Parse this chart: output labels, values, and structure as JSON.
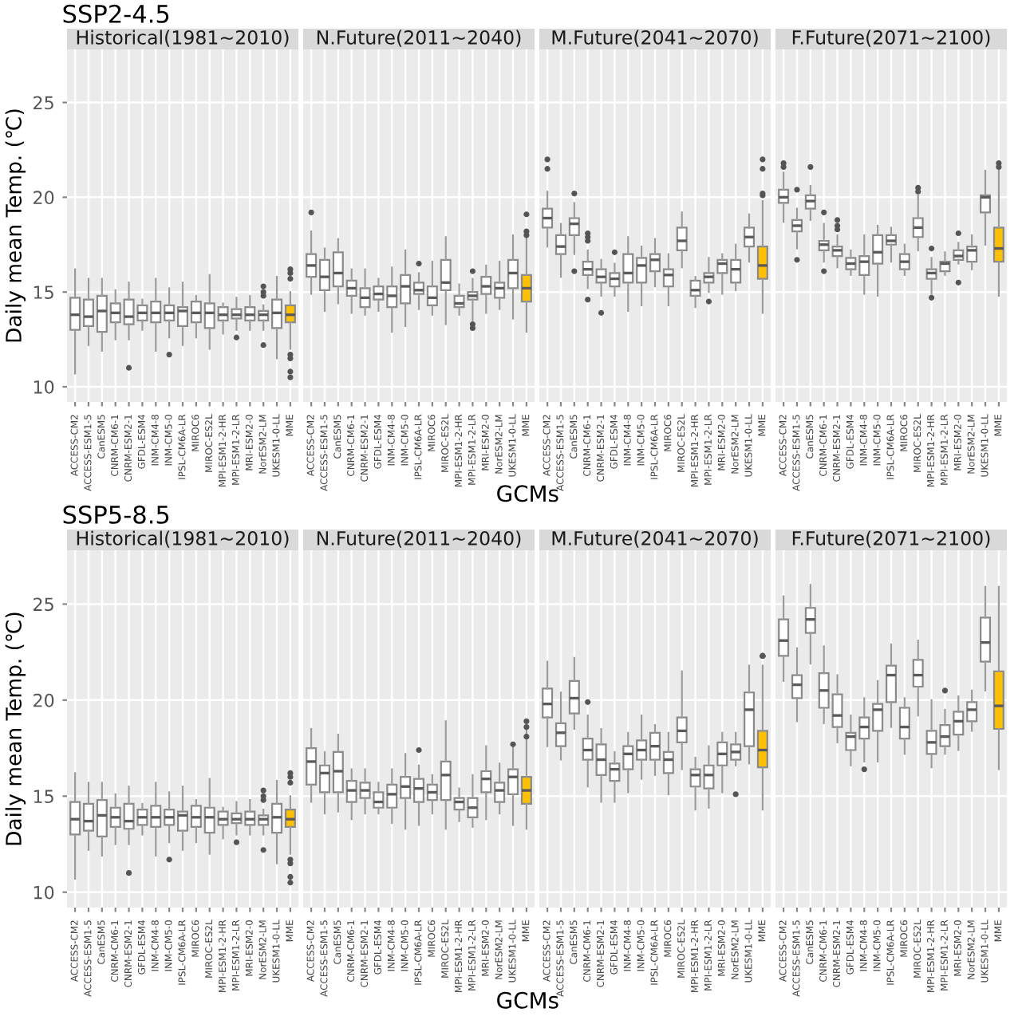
{
  "chart_data": [
    {
      "type": "box",
      "subtitle": "SSP2-4.5",
      "title": "Historical(1981~2010)",
      "ylabel": "Daily mean Temp. (℃)",
      "ylim": [
        9.2,
        27.8
      ],
      "yticks": [
        10,
        15,
        20,
        25
      ],
      "grid": true,
      "categories": [
        "ACCESS-CM2",
        "ACCESS-ESM1-5",
        "CanESM5",
        "CNRM-CM6-1",
        "CNRM-ESM2-1",
        "GFDL-ESM4",
        "INM-CM4-8",
        "INM-CM5-0",
        "IPSL-CM6A-LR",
        "MIROC6",
        "MIROC-ES2L",
        "MPI-ESM1-2-HR",
        "MPI-ESM1-2-LR",
        "MRI-ESM2-0",
        "NorESM2-LM",
        "UKESM1-0-LL",
        "MME"
      ],
      "colors": [
        "#ffffff",
        "#ffffff",
        "#ffffff",
        "#ffffff",
        "#ffffff",
        "#ffffff",
        "#ffffff",
        "#ffffff",
        "#ffffff",
        "#ffffff",
        "#ffffff",
        "#ffffff",
        "#ffffff",
        "#ffffff",
        "#ffffff",
        "#ffffff",
        "#ffc000"
      ],
      "boxes": [
        {
          "low": 10.7,
          "q1": 13.0,
          "median": 13.8,
          "q3": 14.7,
          "high": 16.2
        },
        {
          "low": 12.2,
          "q1": 13.2,
          "median": 13.7,
          "q3": 14.6,
          "high": 15.7
        },
        {
          "low": 11.9,
          "q1": 12.9,
          "median": 14.0,
          "q3": 14.8,
          "high": 15.7
        },
        {
          "low": 12.5,
          "q1": 13.4,
          "median": 13.9,
          "q3": 14.4,
          "high": 15.1
        },
        {
          "low": 12.5,
          "q1": 13.3,
          "median": 13.7,
          "q3": 14.6,
          "high": 15.5,
          "outliers": [
            11.0
          ]
        },
        {
          "low": 13.0,
          "q1": 13.5,
          "median": 13.9,
          "q3": 14.3,
          "high": 14.6
        },
        {
          "low": 11.9,
          "q1": 13.4,
          "median": 13.9,
          "q3": 14.5,
          "high": 15.7
        },
        {
          "low": 12.6,
          "q1": 13.5,
          "median": 13.9,
          "q3": 14.3,
          "high": 15.2,
          "outliers": [
            11.7
          ]
        },
        {
          "low": 12.2,
          "q1": 13.2,
          "median": 14.0,
          "q3": 14.2,
          "high": 15.5
        },
        {
          "low": 12.6,
          "q1": 13.4,
          "median": 13.9,
          "q3": 14.5,
          "high": 14.8
        },
        {
          "low": 12.0,
          "q1": 13.1,
          "median": 13.9,
          "q3": 14.4,
          "high": 15.9
        },
        {
          "low": 12.8,
          "q1": 13.5,
          "median": 13.8,
          "q3": 14.2,
          "high": 14.4
        },
        {
          "low": 13.0,
          "q1": 13.6,
          "median": 13.8,
          "q3": 14.1,
          "high": 14.7,
          "outliers": [
            12.6
          ]
        },
        {
          "low": 13.0,
          "q1": 13.5,
          "median": 13.8,
          "q3": 14.2,
          "high": 14.8
        },
        {
          "low": 13.0,
          "q1": 13.5,
          "median": 13.8,
          "q3": 14.0,
          "high": 14.3,
          "outliers": [
            15.3,
            15.0,
            14.8,
            12.2
          ]
        },
        {
          "low": 11.5,
          "q1": 13.1,
          "median": 13.9,
          "q3": 14.6,
          "high": 15.8
        },
        {
          "low": 12.0,
          "q1": 13.4,
          "median": 13.8,
          "q3": 14.3,
          "high": 15.0,
          "outliers": [
            10.5,
            10.8,
            11.5,
            11.7,
            15.7,
            16.0,
            16.2
          ]
        }
      ]
    },
    {
      "type": "box",
      "title": "N.Future(2011~2040)",
      "xlabel": "GCMs",
      "ylim": [
        9.2,
        27.8
      ],
      "yticks": [
        10,
        15,
        20,
        25
      ],
      "grid": true,
      "tick_labels": "x",
      "categories": [
        "ACCESS-CM2",
        "ACCESS-ESM1-5",
        "CanESM5",
        "CNRM-CM6-1",
        "CNRM-ESM2-1",
        "GFDL-ESM4",
        "INM-CM4-8",
        "INM-CM5-0",
        "IPSL-CM6A-LR",
        "MIROC6",
        "MIROC-ES2L",
        "MPI-ESM1-2-HR",
        "MPI-ESM1-2-LR",
        "MRI-ESM2-0",
        "NorESM2-LM",
        "UKESM1-0-LL",
        "MME"
      ],
      "colors": [
        "#ffffff",
        "#ffffff",
        "#ffffff",
        "#ffffff",
        "#ffffff",
        "#ffffff",
        "#ffffff",
        "#ffffff",
        "#ffffff",
        "#ffffff",
        "#ffffff",
        "#ffffff",
        "#ffffff",
        "#ffffff",
        "#ffffff",
        "#ffffff",
        "#ffc000"
      ],
      "boxes": [
        {
          "low": 14.9,
          "q1": 15.8,
          "median": 16.4,
          "q3": 17.0,
          "high": 18.2,
          "outliers": [
            19.2
          ]
        },
        {
          "low": 14.0,
          "q1": 15.1,
          "median": 15.8,
          "q3": 16.7,
          "high": 17.3
        },
        {
          "low": 14.4,
          "q1": 15.3,
          "median": 16.0,
          "q3": 17.1,
          "high": 17.8
        },
        {
          "low": 13.9,
          "q1": 14.8,
          "median": 15.2,
          "q3": 15.6,
          "high": 16.2
        },
        {
          "low": 13.8,
          "q1": 14.2,
          "median": 14.7,
          "q3": 15.2,
          "high": 16.2
        },
        {
          "low": 14.0,
          "q1": 14.6,
          "median": 14.9,
          "q3": 15.3,
          "high": 15.7
        },
        {
          "low": 12.9,
          "q1": 14.2,
          "median": 14.8,
          "q3": 15.3,
          "high": 16.3
        },
        {
          "low": 13.2,
          "q1": 14.4,
          "median": 15.3,
          "q3": 15.9,
          "high": 17.2
        },
        {
          "low": 14.1,
          "q1": 14.9,
          "median": 15.1,
          "q3": 15.5,
          "high": 16.0,
          "outliers": [
            16.5
          ]
        },
        {
          "low": 13.8,
          "q1": 14.3,
          "median": 14.7,
          "q3": 15.3,
          "high": 16.6
        },
        {
          "low": 13.3,
          "q1": 15.1,
          "median": 15.5,
          "q3": 16.7,
          "high": 17.9
        },
        {
          "low": 13.8,
          "q1": 14.2,
          "median": 14.4,
          "q3": 14.8,
          "high": 15.4
        },
        {
          "low": 13.5,
          "q1": 14.6,
          "median": 14.8,
          "q3": 15.0,
          "high": 15.7,
          "outliers": [
            16.1,
            13.3,
            13.1
          ]
        },
        {
          "low": 13.9,
          "q1": 14.9,
          "median": 15.3,
          "q3": 15.8,
          "high": 16.4
        },
        {
          "low": 14.1,
          "q1": 14.7,
          "median": 15.2,
          "q3": 15.5,
          "high": 16.6
        },
        {
          "low": 13.6,
          "q1": 15.2,
          "median": 16.0,
          "q3": 16.7,
          "high": 18.0
        },
        {
          "low": 12.9,
          "q1": 14.5,
          "median": 15.2,
          "q3": 15.9,
          "high": 17.9,
          "outliers": [
            18.0,
            18.2,
            19.1
          ]
        }
      ]
    },
    {
      "type": "box",
      "title": "M.Future(2041~2070)",
      "ylim": [
        9.2,
        27.8
      ],
      "yticks": [
        10,
        15,
        20,
        25
      ],
      "grid": true,
      "tick_labels": "x",
      "categories": [
        "ACCESS-CM2",
        "ACCESS-ESM1-5",
        "CanESM5",
        "CNRM-CM6-1",
        "CNRM-ESM2-1",
        "GFDL-ESM4",
        "INM-CM4-8",
        "INM-CM5-0",
        "IPSL-CM6A-LR",
        "MIROC6",
        "MIROC-ES2L",
        "MPI-ESM1-2-HR",
        "MPI-ESM1-2-LR",
        "MRI-ESM2-0",
        "NorESM2-LM",
        "UKESM1-0-LL",
        "MME"
      ],
      "colors": [
        "#ffffff",
        "#ffffff",
        "#ffffff",
        "#ffffff",
        "#ffffff",
        "#ffffff",
        "#ffffff",
        "#ffffff",
        "#ffffff",
        "#ffffff",
        "#ffffff",
        "#ffffff",
        "#ffffff",
        "#ffffff",
        "#ffffff",
        "#ffffff",
        "#ffc000"
      ],
      "boxes": [
        {
          "low": 17.4,
          "q1": 18.4,
          "median": 18.9,
          "q3": 19.4,
          "high": 20.3,
          "outliers": [
            22.0,
            21.5
          ]
        },
        {
          "low": 15.8,
          "q1": 17.0,
          "median": 17.4,
          "q3": 18.0,
          "high": 18.6
        },
        {
          "low": 17.0,
          "q1": 18.0,
          "median": 18.6,
          "q3": 18.9,
          "high": 19.7,
          "outliers": [
            20.2,
            16.1
          ]
        },
        {
          "low": 15.2,
          "q1": 15.9,
          "median": 16.2,
          "q3": 16.6,
          "high": 17.2,
          "outliers": [
            18.1,
            17.9,
            17.7,
            14.6
          ]
        },
        {
          "low": 14.8,
          "q1": 15.5,
          "median": 15.8,
          "q3": 16.2,
          "high": 16.7,
          "outliers": [
            13.9
          ]
        },
        {
          "low": 14.8,
          "q1": 15.3,
          "median": 15.7,
          "q3": 16.0,
          "high": 16.5,
          "outliers": [
            17.1
          ]
        },
        {
          "low": 14.0,
          "q1": 15.5,
          "median": 16.0,
          "q3": 17.0,
          "high": 17.9
        },
        {
          "low": 14.3,
          "q1": 15.5,
          "median": 16.4,
          "q3": 16.8,
          "high": 17.4
        },
        {
          "low": 15.3,
          "q1": 16.1,
          "median": 16.7,
          "q3": 17.0,
          "high": 17.8
        },
        {
          "low": 14.3,
          "q1": 15.3,
          "median": 15.9,
          "q3": 16.2,
          "high": 17.0
        },
        {
          "low": 16.3,
          "q1": 17.2,
          "median": 17.7,
          "q3": 18.4,
          "high": 19.2
        },
        {
          "low": 14.2,
          "q1": 14.8,
          "median": 15.1,
          "q3": 15.6,
          "high": 15.8
        },
        {
          "low": 15.0,
          "q1": 15.5,
          "median": 15.8,
          "q3": 16.0,
          "high": 16.8,
          "outliers": [
            14.5
          ]
        },
        {
          "low": 14.9,
          "q1": 16.0,
          "median": 16.5,
          "q3": 16.7,
          "high": 17.0
        },
        {
          "low": 15.1,
          "q1": 15.5,
          "median": 16.2,
          "q3": 16.7,
          "high": 17.5
        },
        {
          "low": 16.6,
          "q1": 17.4,
          "median": 17.9,
          "q3": 18.4,
          "high": 19.1
        },
        {
          "low": 13.9,
          "q1": 15.7,
          "median": 16.4,
          "q3": 17.4,
          "high": 19.8,
          "outliers": [
            22.0,
            21.5,
            20.2,
            20.1
          ]
        }
      ]
    },
    {
      "type": "box",
      "title": "F.Future(2071~2100)",
      "ylim": [
        9.2,
        27.8
      ],
      "yticks": [
        10,
        15,
        20,
        25
      ],
      "grid": true,
      "tick_labels": "x",
      "categories": [
        "ACCESS-CM2",
        "ACCESS-ESM1-5",
        "CanESM5",
        "CNRM-CM6-1",
        "CNRM-ESM2-1",
        "GFDL-ESM4",
        "INM-CM4-8",
        "INM-CM5-0",
        "IPSL-CM6A-LR",
        "MIROC6",
        "MIROC-ES2L",
        "MPI-ESM1-2-HR",
        "MPI-ESM1-2-LR",
        "MRI-ESM2-0",
        "NorESM2-LM",
        "UKESM1-0-LL",
        "MME"
      ],
      "colors": [
        "#ffffff",
        "#ffffff",
        "#ffffff",
        "#ffffff",
        "#ffffff",
        "#ffffff",
        "#ffffff",
        "#ffffff",
        "#ffffff",
        "#ffffff",
        "#ffffff",
        "#ffffff",
        "#ffffff",
        "#ffffff",
        "#ffffff",
        "#ffffff",
        "#ffc000"
      ],
      "boxes": [
        {
          "low": 18.7,
          "q1": 19.7,
          "median": 20.0,
          "q3": 20.4,
          "high": 21.3,
          "outliers": [
            21.8,
            21.6
          ]
        },
        {
          "low": 17.3,
          "q1": 18.2,
          "median": 18.5,
          "q3": 18.8,
          "high": 19.4,
          "outliers": [
            20.4,
            16.7
          ]
        },
        {
          "low": 18.8,
          "q1": 19.4,
          "median": 19.8,
          "q3": 20.1,
          "high": 20.6,
          "outliers": [
            21.6
          ]
        },
        {
          "low": 16.6,
          "q1": 17.2,
          "median": 17.5,
          "q3": 17.7,
          "high": 18.6,
          "outliers": [
            19.2,
            16.1
          ]
        },
        {
          "low": 16.3,
          "q1": 16.9,
          "median": 17.2,
          "q3": 17.4,
          "high": 18.0,
          "outliers": [
            18.8,
            18.5,
            18.3
          ]
        },
        {
          "low": 15.9,
          "q1": 16.2,
          "median": 16.5,
          "q3": 16.8,
          "high": 17.2
        },
        {
          "low": 14.9,
          "q1": 15.9,
          "median": 16.6,
          "q3": 16.9,
          "high": 18.0
        },
        {
          "low": 14.8,
          "q1": 16.5,
          "median": 17.1,
          "q3": 18.0,
          "high": 18.5
        },
        {
          "low": 16.6,
          "q1": 17.5,
          "median": 17.7,
          "q3": 18.0,
          "high": 18.4
        },
        {
          "low": 15.9,
          "q1": 16.2,
          "median": 16.6,
          "q3": 17.0,
          "high": 17.5
        },
        {
          "low": 17.2,
          "q1": 17.9,
          "median": 18.4,
          "q3": 18.9,
          "high": 20.1,
          "outliers": [
            20.5,
            20.3
          ]
        },
        {
          "low": 14.9,
          "q1": 15.7,
          "median": 16.0,
          "q3": 16.2,
          "high": 16.8,
          "outliers": [
            17.3,
            14.7
          ]
        },
        {
          "low": 15.9,
          "q1": 16.1,
          "median": 16.5,
          "q3": 16.6,
          "high": 17.1
        },
        {
          "low": 16.5,
          "q1": 16.7,
          "median": 16.9,
          "q3": 17.2,
          "high": 17.6,
          "outliers": [
            18.1,
            15.5
          ]
        },
        {
          "low": 16.2,
          "q1": 16.6,
          "median": 17.2,
          "q3": 17.4,
          "high": 18.0
        },
        {
          "low": 17.5,
          "q1": 19.2,
          "median": 20.0,
          "q3": 20.1,
          "high": 21.4
        },
        {
          "low": 14.8,
          "q1": 16.6,
          "median": 17.3,
          "q3": 18.4,
          "high": 21.4,
          "outliers": [
            21.8,
            21.6
          ]
        }
      ]
    },
    {
      "type": "box",
      "subtitle": "SSP5-8.5",
      "title": "Historical(1981~2010)",
      "ylabel": "Daily mean Temp. (℃)",
      "ylim": [
        9.2,
        27.8
      ],
      "yticks": [
        10,
        15,
        20,
        25
      ],
      "grid": true,
      "categories": [
        "ACCESS-CM2",
        "ACCESS-ESM1-5",
        "CanESM5",
        "CNRM-CM6-1",
        "CNRM-ESM2-1",
        "GFDL-ESM4",
        "INM-CM4-8",
        "INM-CM5-0",
        "IPSL-CM6A-LR",
        "MIROC6",
        "MIROC-ES2L",
        "MPI-ESM1-2-HR",
        "MPI-ESM1-2-LR",
        "MRI-ESM2-0",
        "NorESM2-LM",
        "UKESM1-0-LL",
        "MME"
      ],
      "colors": [
        "#ffffff",
        "#ffffff",
        "#ffffff",
        "#ffffff",
        "#ffffff",
        "#ffffff",
        "#ffffff",
        "#ffffff",
        "#ffffff",
        "#ffffff",
        "#ffffff",
        "#ffffff",
        "#ffffff",
        "#ffffff",
        "#ffffff",
        "#ffffff",
        "#ffc000"
      ],
      "boxes": [
        {
          "low": 10.7,
          "q1": 13.0,
          "median": 13.8,
          "q3": 14.7,
          "high": 16.2
        },
        {
          "low": 12.2,
          "q1": 13.2,
          "median": 13.7,
          "q3": 14.6,
          "high": 15.7
        },
        {
          "low": 11.9,
          "q1": 12.9,
          "median": 14.0,
          "q3": 14.8,
          "high": 15.7
        },
        {
          "low": 12.5,
          "q1": 13.4,
          "median": 13.9,
          "q3": 14.4,
          "high": 15.1
        },
        {
          "low": 12.5,
          "q1": 13.3,
          "median": 13.7,
          "q3": 14.6,
          "high": 15.5,
          "outliers": [
            11.0
          ]
        },
        {
          "low": 13.0,
          "q1": 13.5,
          "median": 13.9,
          "q3": 14.3,
          "high": 14.6
        },
        {
          "low": 11.9,
          "q1": 13.4,
          "median": 13.9,
          "q3": 14.5,
          "high": 15.7
        },
        {
          "low": 12.6,
          "q1": 13.5,
          "median": 13.9,
          "q3": 14.3,
          "high": 15.2,
          "outliers": [
            11.7
          ]
        },
        {
          "low": 12.2,
          "q1": 13.2,
          "median": 14.0,
          "q3": 14.2,
          "high": 15.5
        },
        {
          "low": 12.6,
          "q1": 13.4,
          "median": 13.9,
          "q3": 14.5,
          "high": 14.8
        },
        {
          "low": 12.0,
          "q1": 13.1,
          "median": 13.9,
          "q3": 14.4,
          "high": 15.9
        },
        {
          "low": 12.8,
          "q1": 13.5,
          "median": 13.8,
          "q3": 14.2,
          "high": 14.4
        },
        {
          "low": 13.0,
          "q1": 13.6,
          "median": 13.8,
          "q3": 14.1,
          "high": 14.7,
          "outliers": [
            12.6
          ]
        },
        {
          "low": 13.0,
          "q1": 13.5,
          "median": 13.8,
          "q3": 14.2,
          "high": 14.8
        },
        {
          "low": 13.0,
          "q1": 13.5,
          "median": 13.8,
          "q3": 14.0,
          "high": 14.3,
          "outliers": [
            15.3,
            15.0,
            14.8,
            12.2
          ]
        },
        {
          "low": 11.5,
          "q1": 13.1,
          "median": 13.9,
          "q3": 14.6,
          "high": 15.8
        },
        {
          "low": 12.0,
          "q1": 13.4,
          "median": 13.8,
          "q3": 14.3,
          "high": 15.0,
          "outliers": [
            10.5,
            10.8,
            11.5,
            11.7,
            15.7,
            16.0,
            16.2
          ]
        }
      ]
    },
    {
      "type": "box",
      "title": "N.Future(2011~2040)",
      "xlabel": "GCMs",
      "ylim": [
        9.2,
        27.8
      ],
      "yticks": [
        10,
        15,
        20,
        25
      ],
      "grid": true,
      "tick_labels": "x",
      "categories": [
        "ACCESS-CM2",
        "ACCESS-ESM1-5",
        "CanESM5",
        "CNRM-CM6-1",
        "CNRM-ESM2-1",
        "GFDL-ESM4",
        "INM-CM4-8",
        "INM-CM5-0",
        "IPSL-CM6A-LR",
        "MIROC6",
        "MIROC-ES2L",
        "MPI-ESM1-2-HR",
        "MPI-ESM1-2-LR",
        "MRI-ESM2-0",
        "NorESM2-LM",
        "UKESM1-0-LL",
        "MME"
      ],
      "colors": [
        "#ffffff",
        "#ffffff",
        "#ffffff",
        "#ffffff",
        "#ffffff",
        "#ffffff",
        "#ffffff",
        "#ffffff",
        "#ffffff",
        "#ffffff",
        "#ffffff",
        "#ffffff",
        "#ffffff",
        "#ffffff",
        "#ffffff",
        "#ffffff",
        "#ffc000"
      ],
      "boxes": [
        {
          "low": 14.7,
          "q1": 15.6,
          "median": 16.8,
          "q3": 17.5,
          "high": 18.5
        },
        {
          "low": 14.1,
          "q1": 15.2,
          "median": 16.2,
          "q3": 16.6,
          "high": 17.3
        },
        {
          "low": 14.2,
          "q1": 15.2,
          "median": 16.3,
          "q3": 17.3,
          "high": 18.2
        },
        {
          "low": 13.8,
          "q1": 14.7,
          "median": 15.3,
          "q3": 15.8,
          "high": 16.4
        },
        {
          "low": 14.1,
          "q1": 14.9,
          "median": 15.3,
          "q3": 15.7,
          "high": 16.4
        },
        {
          "low": 14.1,
          "q1": 14.4,
          "median": 14.7,
          "q3": 15.2,
          "high": 15.7
        },
        {
          "low": 13.6,
          "q1": 14.4,
          "median": 15.1,
          "q3": 15.6,
          "high": 16.4
        },
        {
          "low": 13.3,
          "q1": 14.9,
          "median": 15.5,
          "q3": 16.0,
          "high": 17.2
        },
        {
          "low": 13.5,
          "q1": 14.7,
          "median": 15.4,
          "q3": 15.9,
          "high": 16.6,
          "outliers": [
            17.4
          ]
        },
        {
          "low": 14.1,
          "q1": 14.8,
          "median": 15.2,
          "q3": 15.6,
          "high": 16.1
        },
        {
          "low": 13.3,
          "q1": 14.8,
          "median": 16.1,
          "q3": 16.8,
          "high": 18.9
        },
        {
          "low": 13.7,
          "q1": 14.3,
          "median": 14.7,
          "q3": 14.9,
          "high": 15.4
        },
        {
          "low": 13.4,
          "q1": 13.9,
          "median": 14.4,
          "q3": 14.9,
          "high": 16.1
        },
        {
          "low": 13.8,
          "q1": 15.2,
          "median": 15.9,
          "q3": 16.3,
          "high": 17.6
        },
        {
          "low": 14.1,
          "q1": 14.7,
          "median": 15.3,
          "q3": 15.7,
          "high": 16.7
        },
        {
          "low": 13.5,
          "q1": 15.1,
          "median": 16.0,
          "q3": 16.4,
          "high": 17.5,
          "outliers": [
            17.7
          ]
        },
        {
          "low": 13.3,
          "q1": 14.6,
          "median": 15.3,
          "q3": 16.0,
          "high": 18.5,
          "outliers": [
            18.9,
            18.6,
            18.1
          ]
        }
      ]
    },
    {
      "type": "box",
      "title": "M.Future(2041~2070)",
      "ylim": [
        9.2,
        27.8
      ],
      "yticks": [
        10,
        15,
        20,
        25
      ],
      "grid": true,
      "tick_labels": "x",
      "categories": [
        "ACCESS-CM2",
        "ACCESS-ESM1-5",
        "CanESM5",
        "CNRM-CM6-1",
        "CNRM-ESM2-1",
        "GFDL-ESM4",
        "INM-CM4-8",
        "INM-CM5-0",
        "IPSL-CM6A-LR",
        "MIROC6",
        "MIROC-ES2L",
        "MPI-ESM1-2-HR",
        "MPI-ESM1-2-LR",
        "MRI-ESM2-0",
        "NorESM2-LM",
        "UKESM1-0-LL",
        "MME"
      ],
      "colors": [
        "#ffffff",
        "#ffffff",
        "#ffffff",
        "#ffffff",
        "#ffffff",
        "#ffffff",
        "#ffffff",
        "#ffffff",
        "#ffffff",
        "#ffffff",
        "#ffffff",
        "#ffffff",
        "#ffffff",
        "#ffffff",
        "#ffffff",
        "#ffffff",
        "#ffc000"
      ],
      "boxes": [
        {
          "low": 17.6,
          "q1": 19.1,
          "median": 19.8,
          "q3": 20.6,
          "high": 22.0
        },
        {
          "low": 16.9,
          "q1": 17.6,
          "median": 18.3,
          "q3": 18.8,
          "high": 20.4
        },
        {
          "low": 18.5,
          "q1": 19.3,
          "median": 20.1,
          "q3": 21.0,
          "high": 22.2
        },
        {
          "low": 15.5,
          "q1": 16.9,
          "median": 17.4,
          "q3": 18.0,
          "high": 19.2,
          "outliers": [
            19.9
          ]
        },
        {
          "low": 14.7,
          "q1": 16.1,
          "median": 16.9,
          "q3": 17.7,
          "high": 18.5
        },
        {
          "low": 14.7,
          "q1": 15.8,
          "median": 16.4,
          "q3": 16.7,
          "high": 17.3
        },
        {
          "low": 15.2,
          "q1": 16.4,
          "median": 17.2,
          "q3": 17.6,
          "high": 18.3
        },
        {
          "low": 15.9,
          "q1": 16.9,
          "median": 17.4,
          "q3": 17.9,
          "high": 19.2
        },
        {
          "low": 16.1,
          "q1": 16.9,
          "median": 17.6,
          "q3": 18.3,
          "high": 18.7
        },
        {
          "low": 15.1,
          "q1": 16.2,
          "median": 16.9,
          "q3": 17.3,
          "high": 18.3
        },
        {
          "low": 16.4,
          "q1": 17.8,
          "median": 18.4,
          "q3": 19.1,
          "high": 21.5
        },
        {
          "low": 14.3,
          "q1": 15.5,
          "median": 16.1,
          "q3": 16.4,
          "high": 17.0
        },
        {
          "low": 14.4,
          "q1": 15.4,
          "median": 16.1,
          "q3": 16.6,
          "high": 17.6
        },
        {
          "low": 15.2,
          "q1": 16.6,
          "median": 17.2,
          "q3": 17.8,
          "high": 18.3
        },
        {
          "low": 16.6,
          "q1": 16.9,
          "median": 17.3,
          "q3": 17.7,
          "high": 18.3,
          "outliers": [
            15.1
          ]
        },
        {
          "low": 16.7,
          "q1": 17.6,
          "median": 19.5,
          "q3": 20.4,
          "high": 21.8
        },
        {
          "low": 14.3,
          "q1": 16.5,
          "median": 17.4,
          "q3": 18.4,
          "high": 21.8,
          "outliers": [
            22.3,
            22.3,
            22.3,
            22.3
          ]
        }
      ]
    },
    {
      "type": "box",
      "title": "F.Future(2071~2100)",
      "ylim": [
        9.2,
        27.8
      ],
      "yticks": [
        10,
        15,
        20,
        25
      ],
      "grid": true,
      "tick_labels": "x",
      "categories": [
        "ACCESS-CM2",
        "ACCESS-ESM1-5",
        "CanESM5",
        "CNRM-CM6-1",
        "CNRM-ESM2-1",
        "GFDL-ESM4",
        "INM-CM4-8",
        "INM-CM5-0",
        "IPSL-CM6A-LR",
        "MIROC6",
        "MIROC-ES2L",
        "MPI-ESM1-2-HR",
        "MPI-ESM1-2-LR",
        "MRI-ESM2-0",
        "NorESM2-LM",
        "UKESM1-0-LL",
        "MME"
      ],
      "colors": [
        "#ffffff",
        "#ffffff",
        "#ffffff",
        "#ffffff",
        "#ffffff",
        "#ffffff",
        "#ffffff",
        "#ffffff",
        "#ffffff",
        "#ffffff",
        "#ffffff",
        "#ffffff",
        "#ffffff",
        "#ffffff",
        "#ffffff",
        "#ffffff",
        "#ffc000"
      ],
      "boxes": [
        {
          "low": 21.0,
          "q1": 22.3,
          "median": 23.1,
          "q3": 24.2,
          "high": 25.4
        },
        {
          "low": 18.9,
          "q1": 20.1,
          "median": 20.8,
          "q3": 21.3,
          "high": 22.7
        },
        {
          "low": 21.9,
          "q1": 23.5,
          "median": 24.2,
          "q3": 24.8,
          "high": 26.0
        },
        {
          "low": 18.8,
          "q1": 19.6,
          "median": 20.5,
          "q3": 21.4,
          "high": 22.8
        },
        {
          "low": 17.8,
          "q1": 18.6,
          "median": 19.2,
          "q3": 20.3,
          "high": 21.3
        },
        {
          "low": 16.6,
          "q1": 17.4,
          "median": 18.1,
          "q3": 18.3,
          "high": 19.2
        },
        {
          "low": 16.8,
          "q1": 18.0,
          "median": 18.6,
          "q3": 19.1,
          "high": 20.1,
          "outliers": [
            16.4
          ]
        },
        {
          "low": 16.8,
          "q1": 18.4,
          "median": 19.5,
          "q3": 19.8,
          "high": 21.0
        },
        {
          "low": 18.6,
          "q1": 19.9,
          "median": 21.3,
          "q3": 21.8,
          "high": 22.9
        },
        {
          "low": 17.2,
          "q1": 18.0,
          "median": 18.6,
          "q3": 19.6,
          "high": 20.1
        },
        {
          "low": 19.2,
          "q1": 20.7,
          "median": 21.3,
          "q3": 22.1,
          "high": 23.1
        },
        {
          "low": 16.5,
          "q1": 17.2,
          "median": 17.8,
          "q3": 18.4,
          "high": 20.0
        },
        {
          "low": 17.2,
          "q1": 17.6,
          "median": 18.1,
          "q3": 18.7,
          "high": 19.5,
          "outliers": [
            20.5
          ]
        },
        {
          "low": 17.4,
          "q1": 18.2,
          "median": 18.9,
          "q3": 19.4,
          "high": 20.2
        },
        {
          "low": 18.4,
          "q1": 18.9,
          "median": 19.5,
          "q3": 19.9,
          "high": 20.5
        },
        {
          "low": 20.5,
          "q1": 22.0,
          "median": 23.0,
          "q3": 24.3,
          "high": 25.9
        },
        {
          "low": 16.4,
          "q1": 18.5,
          "median": 19.7,
          "q3": 21.5,
          "high": 25.9
        }
      ]
    }
  ]
}
